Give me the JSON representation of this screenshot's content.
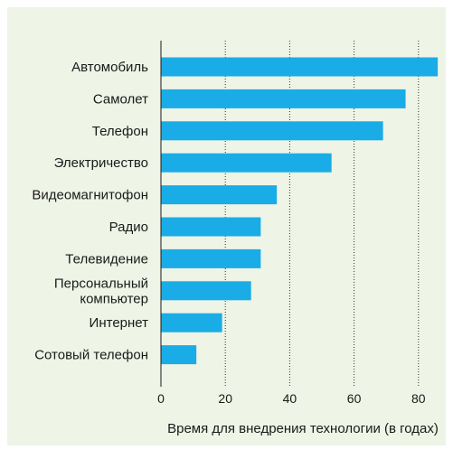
{
  "chart_data": {
    "type": "bar",
    "orientation": "horizontal",
    "categories": [
      "Автомобиль",
      "Самолет",
      "Телефон",
      "Электричество",
      "Видеомагнитофон",
      "Радио",
      "Телевидение",
      "Персональный компьютер",
      "Интернет",
      "Сотовый телефон"
    ],
    "category_lines": [
      [
        "Автомобиль"
      ],
      [
        "Самолет"
      ],
      [
        "Телефон"
      ],
      [
        "Электричество"
      ],
      [
        "Видеомагнитофон"
      ],
      [
        "Радио"
      ],
      [
        "Телевидение"
      ],
      [
        "Персональный",
        "компьютер"
      ],
      [
        "Интернет"
      ],
      [
        "Сотовый телефон"
      ]
    ],
    "values": [
      86,
      76,
      69,
      53,
      36,
      31,
      31,
      28,
      19,
      11
    ],
    "xlabel": "Время для внедрения технологии (в годах)",
    "ylabel": "",
    "xlim": [
      0,
      86
    ],
    "xticks": [
      0,
      20,
      40,
      60,
      80
    ],
    "grid": "vertical dotted",
    "colors": {
      "bar": "#1aace6",
      "background": "#eef4e6",
      "grid": "#333333"
    }
  }
}
